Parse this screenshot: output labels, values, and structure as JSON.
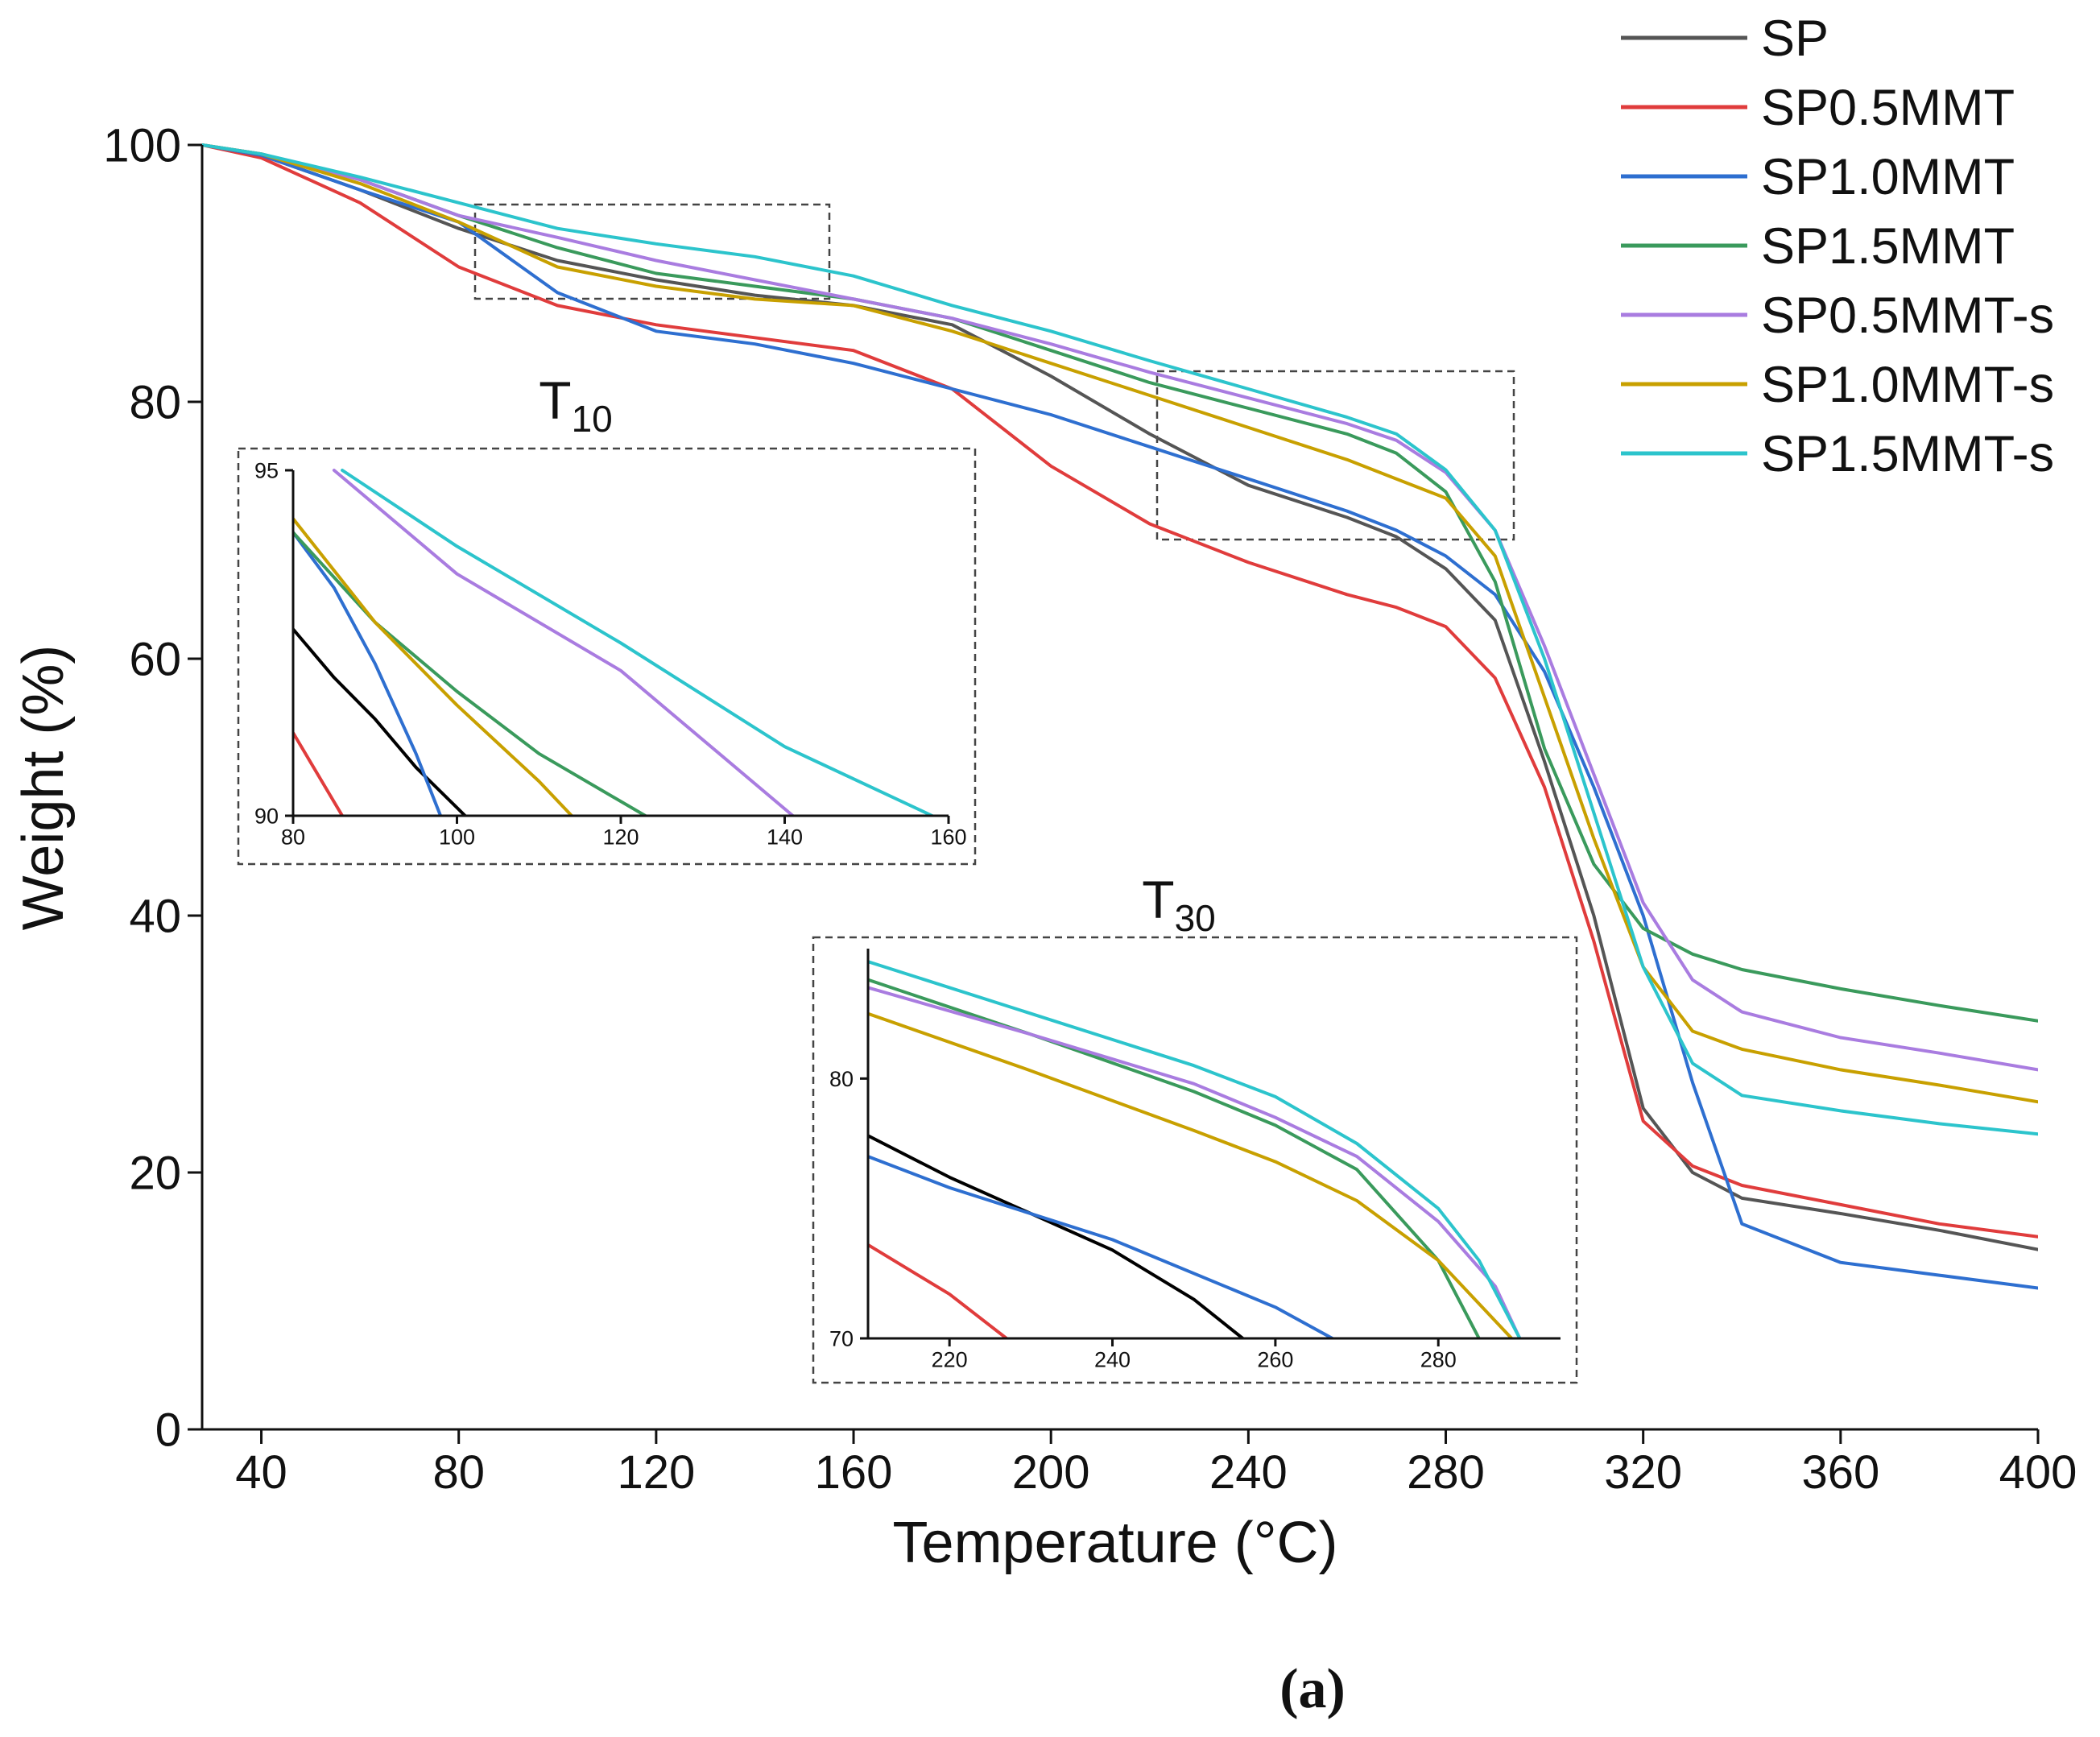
{
  "chart_data": [
    {
      "type": "line",
      "xlabel": "Temperature (°C)",
      "ylabel": "Weight (%)",
      "caption": "(a)",
      "xlim": [
        28,
        400
      ],
      "ylim": [
        0,
        100
      ],
      "xticks": [
        40,
        80,
        120,
        160,
        200,
        240,
        280,
        320,
        360,
        400
      ],
      "yticks": [
        0,
        20,
        40,
        60,
        80,
        100
      ],
      "x": [
        28,
        40,
        60,
        80,
        100,
        120,
        140,
        160,
        180,
        200,
        220,
        240,
        260,
        270,
        280,
        290,
        300,
        310,
        320,
        330,
        340,
        360,
        380,
        400
      ],
      "series": [
        {
          "name": "SP",
          "color": "#555555",
          "values": [
            100,
            99.2,
            96.5,
            93.5,
            91,
            89.5,
            88.3,
            87.5,
            86,
            82,
            77.5,
            73.5,
            71,
            69.5,
            67,
            63,
            52,
            40,
            25,
            20,
            18,
            16.8,
            15.5,
            14
          ]
        },
        {
          "name": "SP0.5MMT",
          "color": "#e03c3c",
          "values": [
            100,
            99,
            95.5,
            90.5,
            87.5,
            86,
            85,
            84,
            81,
            75,
            70.5,
            67.5,
            65,
            64,
            62.5,
            58.5,
            50,
            38,
            24,
            20.5,
            19,
            17.5,
            16,
            15
          ]
        },
        {
          "name": "SP1.0MMT",
          "color": "#2e6fd0",
          "values": [
            100,
            99.2,
            96.5,
            94,
            88.5,
            85.5,
            84.5,
            83,
            81,
            79,
            76.5,
            74,
            71.5,
            70,
            68,
            65,
            59,
            50,
            40,
            27,
            16,
            13,
            12,
            11
          ]
        },
        {
          "name": "SP1.5MMT",
          "color": "#3a9a5c",
          "values": [
            100,
            99.3,
            97.3,
            94.5,
            92,
            90,
            89,
            88,
            86.5,
            84,
            81.5,
            79.5,
            77.5,
            76,
            73,
            66,
            53,
            44,
            39,
            37,
            35.8,
            34.3,
            33,
            31.8
          ]
        },
        {
          "name": "SP0.5MMT-s",
          "color": "#a97ce0",
          "values": [
            100,
            99.3,
            97.3,
            94.5,
            92.8,
            91,
            89.5,
            88,
            86.5,
            84.5,
            82.3,
            80.3,
            78.3,
            77,
            74.5,
            70,
            61,
            51,
            41,
            35,
            32.5,
            30.5,
            29.3,
            28
          ]
        },
        {
          "name": "SP1.0MMT-s",
          "color": "#c8a000",
          "values": [
            100,
            99.3,
            97,
            94,
            90.5,
            89,
            88,
            87.5,
            85.5,
            83,
            80.5,
            78,
            75.5,
            74,
            72.5,
            68,
            57,
            46,
            36,
            31,
            29.6,
            28,
            26.8,
            25.5
          ]
        },
        {
          "name": "SP1.5MMT-s",
          "color": "#2cc4cc",
          "values": [
            100,
            99.3,
            97.5,
            95.5,
            93.5,
            92.3,
            91.3,
            89.8,
            87.5,
            85.5,
            83.2,
            81,
            78.8,
            77.5,
            74.7,
            70,
            60,
            48,
            36,
            28.5,
            26,
            24.8,
            23.8,
            23
          ]
        }
      ]
    },
    {
      "type": "line",
      "label": "T",
      "label_sub": "10",
      "xlim": [
        80,
        160
      ],
      "ylim": [
        90,
        95
      ],
      "xticks": [
        80,
        100,
        120,
        140,
        160
      ],
      "yticks": [
        90,
        95
      ],
      "series": [
        {
          "color": "#000000",
          "x": [
            80,
            85,
            90,
            95,
            101
          ],
          "values": [
            92.7,
            92.0,
            91.4,
            90.7,
            90
          ]
        },
        {
          "color": "#e03c3c",
          "x": [
            80,
            86
          ],
          "values": [
            91.2,
            90
          ]
        },
        {
          "color": "#2e6fd0",
          "x": [
            80,
            85,
            90,
            95,
            98
          ],
          "values": [
            94.1,
            93.3,
            92.2,
            90.9,
            90
          ]
        },
        {
          "color": "#3a9a5c",
          "x": [
            80,
            90,
            100,
            110,
            123
          ],
          "values": [
            94.1,
            92.8,
            91.8,
            90.9,
            90
          ]
        },
        {
          "color": "#a97ce0",
          "x": [
            85,
            100,
            120,
            141
          ],
          "values": [
            95,
            93.5,
            92.1,
            90
          ]
        },
        {
          "color": "#c8a000",
          "x": [
            80,
            90,
            100,
            110,
            114
          ],
          "values": [
            94.3,
            92.8,
            91.6,
            90.5,
            90
          ]
        },
        {
          "color": "#2cc4cc",
          "x": [
            86,
            100,
            120,
            140,
            158
          ],
          "values": [
            95,
            93.9,
            92.5,
            91.0,
            90
          ]
        }
      ]
    },
    {
      "type": "line",
      "label": "T",
      "label_sub": "30",
      "xlim": [
        210,
        295
      ],
      "ylim": [
        70,
        85
      ],
      "xticks": [
        220,
        240,
        260,
        280
      ],
      "yticks": [
        70,
        80
      ],
      "series": [
        {
          "color": "#000000",
          "x": [
            210,
            220,
            230,
            240,
            250,
            256
          ],
          "values": [
            77.8,
            76.2,
            74.8,
            73.4,
            71.5,
            70
          ]
        },
        {
          "color": "#e03c3c",
          "x": [
            210,
            220,
            227
          ],
          "values": [
            73.6,
            71.7,
            70
          ]
        },
        {
          "color": "#2e6fd0",
          "x": [
            210,
            220,
            240,
            260,
            267
          ],
          "values": [
            77,
            75.8,
            73.8,
            71.2,
            70
          ]
        },
        {
          "color": "#3a9a5c",
          "x": [
            210,
            230,
            250,
            260,
            270,
            280,
            285
          ],
          "values": [
            83.8,
            81.7,
            79.5,
            78.2,
            76.5,
            73,
            70
          ]
        },
        {
          "color": "#a97ce0",
          "x": [
            210,
            230,
            250,
            260,
            270,
            280,
            287,
            290
          ],
          "values": [
            83.5,
            81.7,
            79.8,
            78.5,
            77,
            74.5,
            72,
            70
          ]
        },
        {
          "color": "#c8a000",
          "x": [
            210,
            230,
            250,
            260,
            270,
            280,
            289
          ],
          "values": [
            82.5,
            80.3,
            78,
            76.8,
            75.3,
            73,
            70
          ]
        },
        {
          "color": "#2cc4cc",
          "x": [
            210,
            230,
            250,
            260,
            270,
            280,
            285,
            290
          ],
          "values": [
            84.5,
            82.5,
            80.5,
            79.3,
            77.5,
            75,
            73,
            70
          ]
        }
      ]
    }
  ]
}
